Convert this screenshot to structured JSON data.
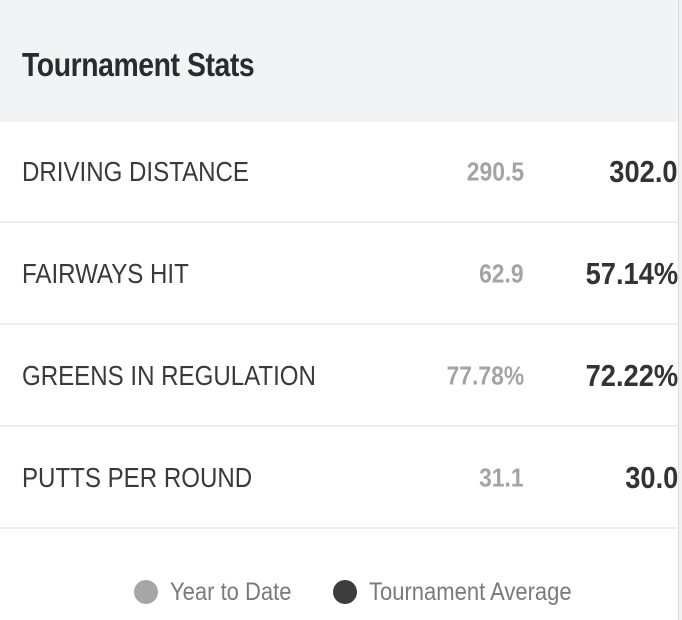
{
  "header": {
    "title": "Tournament Stats"
  },
  "stats": [
    {
      "label": "DRIVING DISTANCE",
      "year_to_date": "290.5",
      "tournament_average": "302.0"
    },
    {
      "label": "FAIRWAYS HIT",
      "year_to_date": "62.9",
      "tournament_average": "57.14%"
    },
    {
      "label": "GREENS IN REGULATION",
      "year_to_date": "77.78%",
      "tournament_average": "72.22%"
    },
    {
      "label": "PUTTS PER ROUND",
      "year_to_date": "31.1",
      "tournament_average": "30.0"
    }
  ],
  "legend": {
    "year_to_date": {
      "label": "Year to Date",
      "color": "#a6a6a6"
    },
    "tournament_average": {
      "label": "Tournament Average",
      "color": "#3d3d3d"
    }
  },
  "colors": {
    "header_bg": "#f2f3f5",
    "ytd_text": "#a4a4a4",
    "tournament_text": "#333333",
    "label_text": "#3a3a3a"
  }
}
